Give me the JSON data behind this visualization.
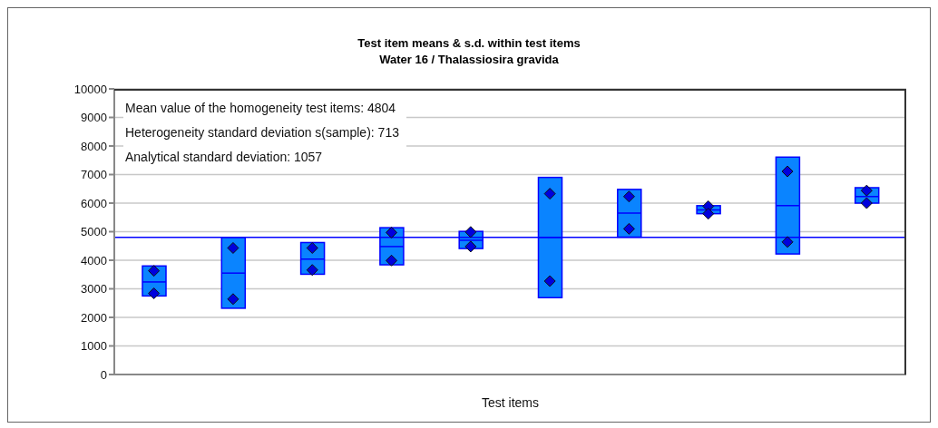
{
  "chart_data": {
    "type": "box",
    "title": "Test item means & s.d. within test items",
    "subtitle": "Water 16 / Thalassiosira gravida",
    "xlabel": "Test items",
    "categories": [
      null,
      null,
      null,
      null,
      null,
      null,
      null,
      null,
      null,
      null
    ],
    "series": [
      {
        "color": "#0a84ff",
        "boxes": [
          {
            "low": 2750,
            "q1": 2750,
            "median": 3240,
            "q3": 3800,
            "high": 3800
          },
          {
            "low": 2320,
            "q1": 2320,
            "median": 3550,
            "q3": 4800,
            "high": 4800
          },
          {
            "low": 3510,
            "q1": 3510,
            "median": 4040,
            "q3": 4620,
            "high": 4620
          },
          {
            "low": 3840,
            "q1": 3840,
            "median": 4480,
            "q3": 5140,
            "high": 5140
          },
          {
            "low": 4410,
            "q1": 4410,
            "median": 4700,
            "q3": 5010,
            "high": 5010
          },
          {
            "low": 2690,
            "q1": 2690,
            "median": 4800,
            "q3": 6900,
            "high": 6900
          },
          {
            "low": 4810,
            "q1": 4810,
            "median": 5650,
            "q3": 6480,
            "high": 6480
          },
          {
            "low": 5630,
            "q1": 5630,
            "median": 5760,
            "q3": 5910,
            "high": 5910
          },
          {
            "low": 4220,
            "q1": 4220,
            "median": 5910,
            "q3": 7610,
            "high": 7610
          },
          {
            "low": 6000,
            "q1": 6000,
            "median": 6230,
            "q3": 6540,
            "high": 6540
          }
        ]
      },
      {
        "type": "scatter",
        "color": "#0000dd",
        "marker": "diamond",
        "values": [
          3630,
          4430,
          4430,
          4970,
          4990,
          6330,
          6230,
          5890,
          7110,
          6440
        ]
      },
      {
        "type": "scatter",
        "color": "#0000dd",
        "marker": "diamond",
        "values": [
          2840,
          2640,
          3660,
          3990,
          4480,
          3270,
          5100,
          5630,
          4640,
          6000
        ]
      }
    ],
    "ylim": [
      0,
      10000
    ],
    "yticks": [
      0,
      1000,
      2000,
      3000,
      4000,
      5000,
      6000,
      7000,
      8000,
      9000,
      10000
    ],
    "grid": "y",
    "tick_labels": "y",
    "ref_lines": [
      {
        "axis": "y",
        "value": 4804,
        "color": "#0000ff"
      }
    ],
    "annotations": [
      "Mean value of the homogeneity test items: 4804",
      "Heterogeneity standard deviation s(sample): 713",
      "Analytical standard deviation: 1057"
    ]
  }
}
